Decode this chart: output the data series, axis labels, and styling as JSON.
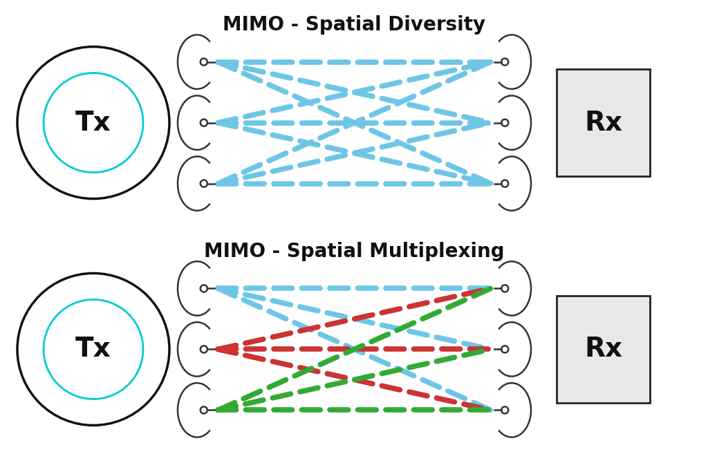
{
  "title1": "MIMO - Spatial Diversity",
  "title2": "MIMO - Spatial Multiplexing",
  "title_fontsize": 20,
  "title_fontweight": "bold",
  "bg_color": "#ffffff",
  "tx_label": "Tx",
  "rx_label": "Rx",
  "label_fontsize": 28,
  "label_fontweight": "bold",
  "sky_blue": "#6EC6E6",
  "red_color": "#CC3333",
  "green_color": "#33AA33",
  "antenna_color": "#333333",
  "tx_circle_color": "#00CCCC",
  "tx_outer_color": "#111111",
  "rx_box_color": "#E8E8E8",
  "rx_box_edge": "#222222",
  "fig_w": 10.24,
  "fig_h": 6.83,
  "dpi": 100
}
